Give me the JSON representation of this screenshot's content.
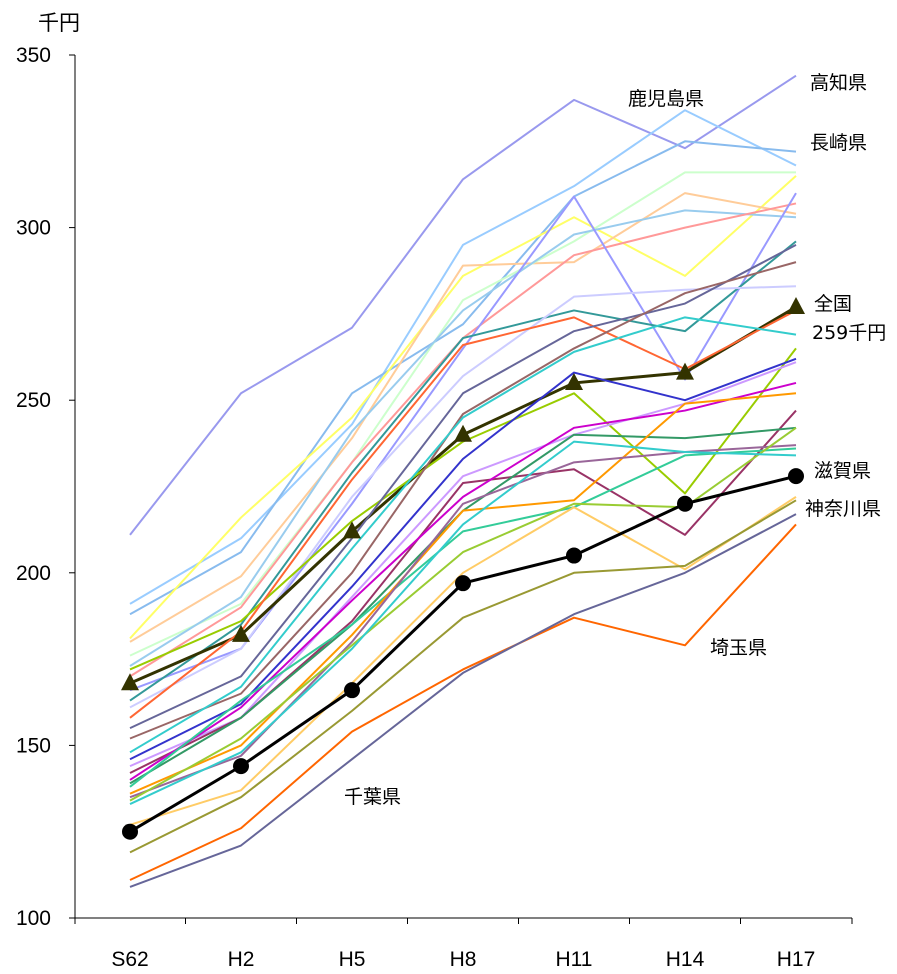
{
  "chart_data": {
    "type": "line",
    "unit_label": "千円",
    "categories": [
      "S62",
      "H2",
      "H5",
      "H8",
      "H11",
      "H14",
      "H17"
    ],
    "ylim": [
      100,
      350
    ],
    "yticks": [
      "100",
      "150",
      "200",
      "250",
      "300",
      "350"
    ],
    "grid": false,
    "legend": "none",
    "annotations": [
      {
        "text": "高知県"
      },
      {
        "text": "鹿児島県"
      },
      {
        "text": "長崎県"
      },
      {
        "text": "全国"
      },
      {
        "text": "259千円"
      },
      {
        "text": "滋賀県"
      },
      {
        "text": "神奈川県"
      },
      {
        "text": "埼玉県"
      },
      {
        "text": "千葉県"
      }
    ],
    "series": [
      {
        "values": [
          211,
          252,
          271,
          314,
          337,
          323,
          344
        ],
        "color": "#9999ee"
      },
      {
        "values": [
          191,
          210,
          243,
          295,
          312,
          334,
          318
        ],
        "color": "#99ccff"
      },
      {
        "values": [
          188,
          206,
          252,
          272,
          309,
          325,
          322
        ],
        "color": "#88bbee"
      },
      {
        "values": [
          181,
          216,
          245,
          286,
          303,
          286,
          315
        ],
        "color": "#ffff66"
      },
      {
        "values": [
          180,
          199,
          239,
          289,
          290,
          310,
          304
        ],
        "color": "#ffcc99"
      },
      {
        "values": [
          176,
          191,
          232,
          279,
          296,
          316,
          316
        ],
        "color": "#ccffcc"
      },
      {
        "values": [
          173,
          193,
          241,
          276,
          298,
          305,
          303
        ],
        "color": "#99ccee"
      },
      {
        "values": [
          170,
          190,
          232,
          268,
          292,
          300,
          307
        ],
        "color": "#ff9999"
      },
      {
        "values": [
          166,
          178,
          220,
          265,
          309,
          256,
          310
        ],
        "color": "#9999ff"
      },
      {
        "values": [
          163,
          185,
          229,
          268,
          276,
          270,
          296
        ],
        "color": "#339999"
      },
      {
        "values": [
          161,
          178,
          222,
          257,
          280,
          282,
          283
        ],
        "color": "#ccccff"
      },
      {
        "values": [
          168,
          182,
          212,
          240,
          255,
          258,
          277
        ],
        "color": "#333300",
        "marker": "triangle",
        "width": 3
      },
      {
        "values": [
          172,
          186,
          215,
          238,
          252,
          223,
          265
        ],
        "color": "#99cc00"
      },
      {
        "values": [
          158,
          183,
          227,
          266,
          274,
          259,
          276
        ],
        "color": "#ff6633"
      },
      {
        "values": [
          155,
          170,
          210,
          252,
          270,
          278,
          295
        ],
        "color": "#666699"
      },
      {
        "values": [
          152,
          165,
          200,
          246,
          265,
          281,
          290
        ],
        "color": "#996666"
      },
      {
        "values": [
          148,
          167,
          207,
          245,
          264,
          274,
          269
        ],
        "color": "#33cccc"
      },
      {
        "values": [
          146,
          162,
          196,
          233,
          258,
          250,
          262
        ],
        "color": "#3333cc"
      },
      {
        "values": [
          144,
          158,
          193,
          228,
          240,
          249,
          261
        ],
        "color": "#cc99ff"
      },
      {
        "values": [
          142,
          158,
          186,
          226,
          230,
          211,
          247
        ],
        "color": "#993366"
      },
      {
        "values": [
          140,
          161,
          192,
          222,
          242,
          247,
          255
        ],
        "color": "#cc00cc"
      },
      {
        "values": [
          139,
          158,
          185,
          218,
          240,
          239,
          242
        ],
        "color": "#339966"
      },
      {
        "values": [
          138,
          163,
          185,
          212,
          219,
          234,
          236
        ],
        "color": "#33cc99"
      },
      {
        "values": [
          136,
          150,
          182,
          218,
          221,
          249,
          252
        ],
        "color": "#ff9900"
      },
      {
        "values": [
          135,
          147,
          180,
          220,
          232,
          235,
          237
        ],
        "color": "#996699"
      },
      {
        "values": [
          134,
          152,
          179,
          206,
          220,
          219,
          242
        ],
        "color": "#99cc33"
      },
      {
        "values": [
          133,
          148,
          178,
          214,
          238,
          235,
          234
        ],
        "color": "#33cccc"
      },
      {
        "values": [
          127,
          137,
          168,
          200,
          219,
          201,
          222
        ],
        "color": "#ffcc66"
      },
      {
        "values": [
          125,
          144,
          166,
          197,
          205,
          220,
          228
        ],
        "color": "#000000",
        "marker": "circle",
        "width": 3
      },
      {
        "values": [
          119,
          135,
          160,
          187,
          200,
          202,
          221
        ],
        "color": "#999933"
      },
      {
        "values": [
          111,
          126,
          154,
          172,
          187,
          179,
          214
        ],
        "color": "#ff6600"
      },
      {
        "values": [
          109,
          121,
          146,
          171,
          188,
          200,
          217
        ],
        "color": "#666699"
      }
    ]
  }
}
